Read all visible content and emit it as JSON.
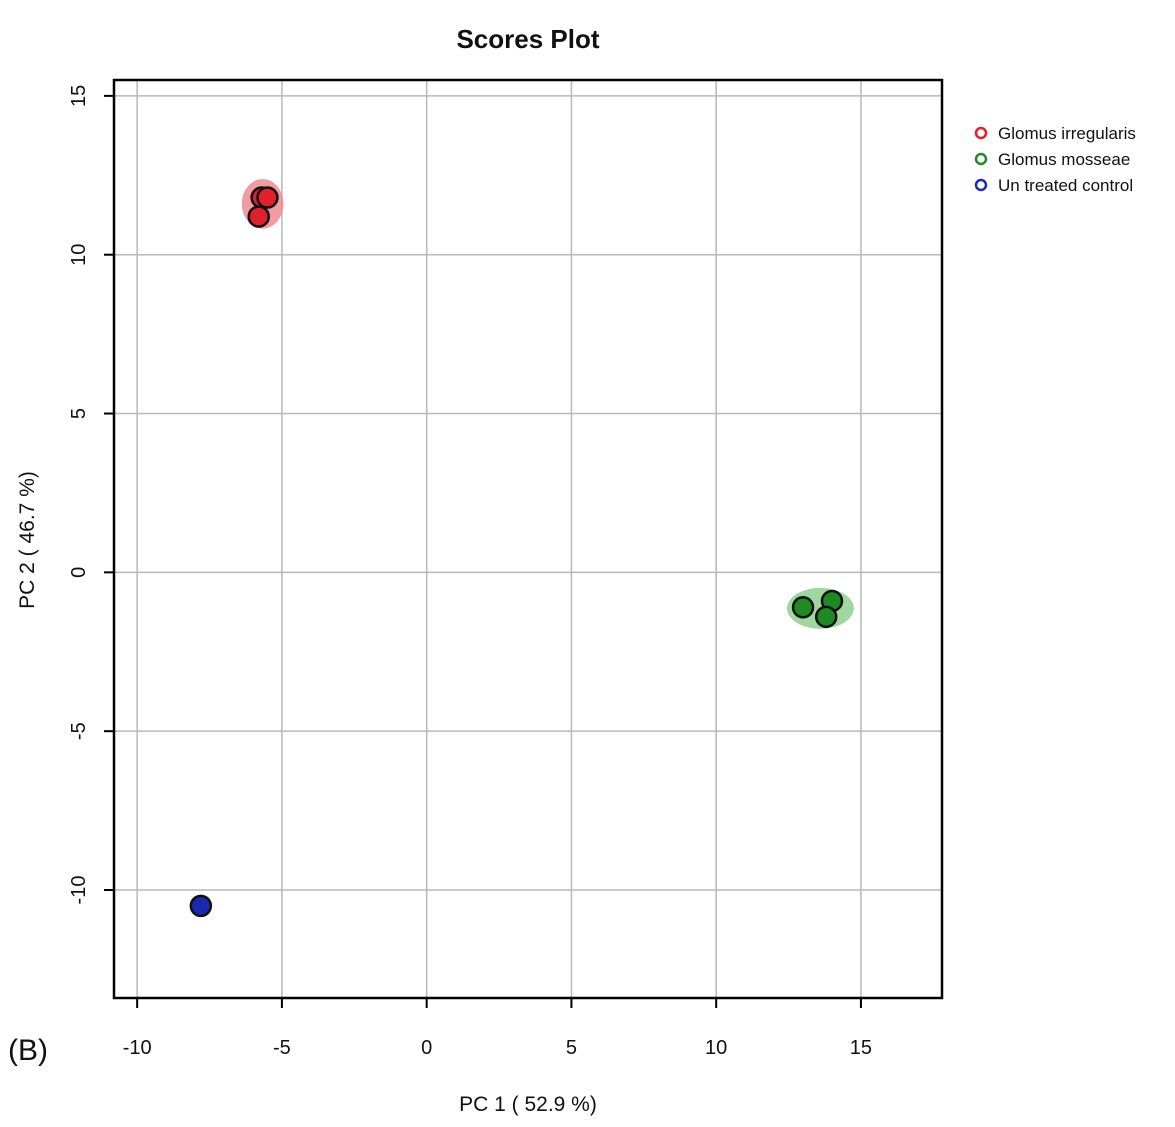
{
  "panel_label": "(B)",
  "chart_data": {
    "type": "scatter",
    "title": "Scores Plot",
    "xlabel": "PC 1 ( 52.9 %)",
    "ylabel": "PC 2 ( 46.7 %)",
    "xlim": [
      -10.8,
      17.8
    ],
    "ylim": [
      -13.4,
      15.5
    ],
    "xticks": [
      -10,
      -5,
      0,
      5,
      10,
      15
    ],
    "yticks": [
      -10,
      -5,
      0,
      5,
      10,
      15
    ],
    "grid": true,
    "legend_position": "right",
    "series": [
      {
        "name": "Glomus irregularis",
        "color": "#e0202c",
        "ellipse_color": "#f08a90",
        "points": [
          {
            "x": -5.7,
            "y": 11.8
          },
          {
            "x": -5.5,
            "y": 11.8
          },
          {
            "x": -5.8,
            "y": 11.2
          }
        ]
      },
      {
        "name": "Glomus mosseae",
        "color": "#1f8a24",
        "ellipse_color": "#8fd08f",
        "points": [
          {
            "x": 13.0,
            "y": -1.1
          },
          {
            "x": 14.0,
            "y": -0.9
          },
          {
            "x": 13.8,
            "y": -1.4
          }
        ]
      },
      {
        "name": "Un treated control",
        "color": "#1a2ab0",
        "ellipse_color": "#8a93d8",
        "points": [
          {
            "x": -7.8,
            "y": -10.5
          }
        ]
      }
    ]
  }
}
